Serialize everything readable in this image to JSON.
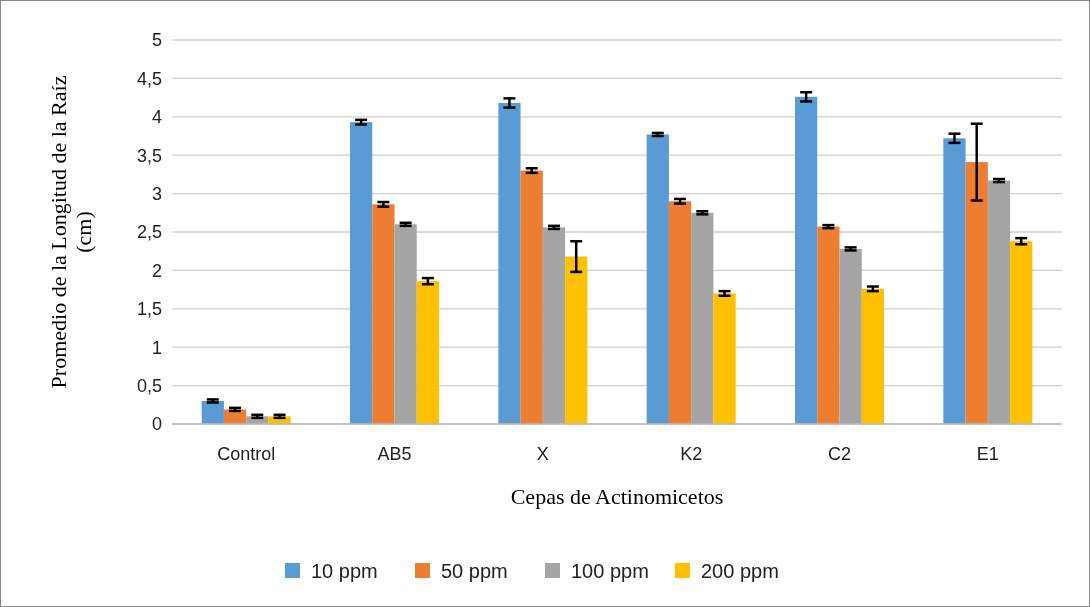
{
  "chart_data": {
    "type": "bar",
    "xlabel": "Cepas de Actinomicetos",
    "ylabel": "Promedio de la Longitud de la Raíz (cm)",
    "categories": [
      "Control",
      "AB5",
      "X",
      "K2",
      "C2",
      "E1"
    ],
    "series": [
      {
        "name": "10 ppm",
        "color": "#5b9bd5",
        "values": [
          0.3,
          3.93,
          4.18,
          3.77,
          4.26,
          3.72
        ],
        "errors": [
          0.02,
          0.03,
          0.06,
          0.02,
          0.06,
          0.06
        ]
      },
      {
        "name": "50 ppm",
        "color": "#ed7d31",
        "values": [
          0.19,
          2.86,
          3.3,
          2.9,
          2.57,
          3.41
        ],
        "errors": [
          0.02,
          0.03,
          0.03,
          0.03,
          0.02,
          0.5
        ]
      },
      {
        "name": "100 ppm",
        "color": "#a5a5a5",
        "values": [
          0.1,
          2.6,
          2.56,
          2.75,
          2.28,
          3.17
        ],
        "errors": [
          0.02,
          0.02,
          0.02,
          0.02,
          0.02,
          0.02
        ]
      },
      {
        "name": "200 ppm",
        "color": "#ffc000",
        "values": [
          0.1,
          1.86,
          2.18,
          1.7,
          1.76,
          2.38
        ],
        "errors": [
          0.02,
          0.04,
          0.2,
          0.03,
          0.03,
          0.04
        ]
      }
    ],
    "ylim": [
      0,
      5
    ],
    "yticks": [
      {
        "value": 0,
        "label": "0"
      },
      {
        "value": 0.5,
        "label": "0,5"
      },
      {
        "value": 1,
        "label": "1"
      },
      {
        "value": 1.5,
        "label": "1,5"
      },
      {
        "value": 2,
        "label": "2"
      },
      {
        "value": 2.5,
        "label": "2,5"
      },
      {
        "value": 3,
        "label": "3"
      },
      {
        "value": 3.5,
        "label": "3,5"
      },
      {
        "value": 4,
        "label": "4"
      },
      {
        "value": 4.5,
        "label": "4,5"
      },
      {
        "value": 5,
        "label": "5"
      }
    ],
    "grid": "y",
    "legend": "bottom"
  }
}
